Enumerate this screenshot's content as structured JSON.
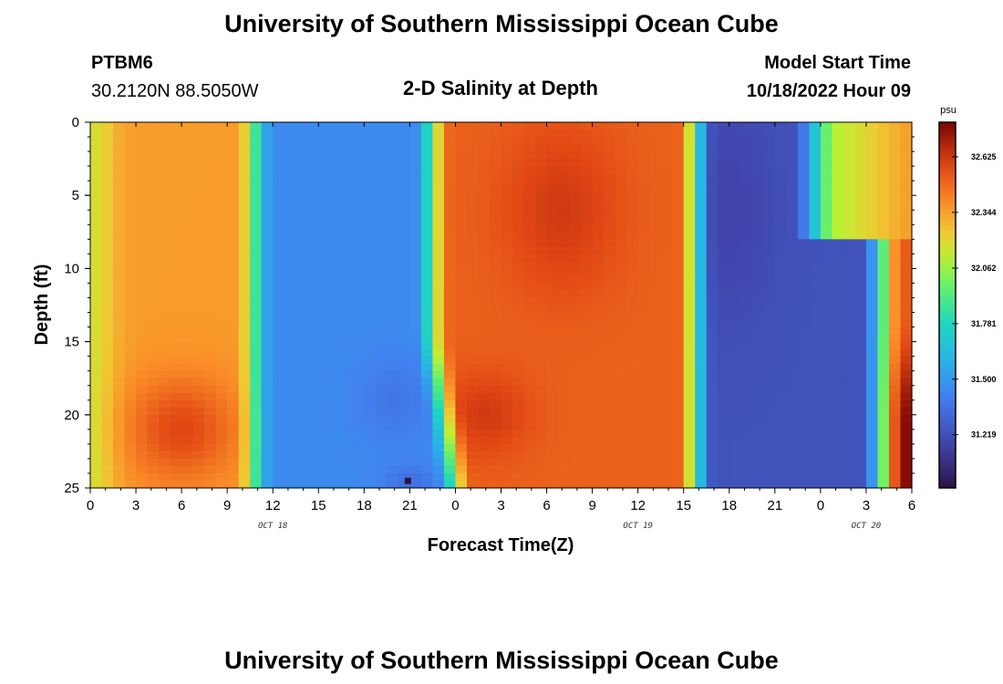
{
  "header": {
    "title": "University of Southern Mississippi Ocean Cube",
    "station": "PTBM6",
    "coords": "30.2120N  88.5050W",
    "plot_title": "2-D Salinity at Depth",
    "model_label": "Model Start Time",
    "model_time": "10/18/2022 Hour 09"
  },
  "footer_title": "University of Southern Mississippi Ocean Cube",
  "colors": {
    "min": "#2a1444",
    "max": "#7a0403"
  },
  "chart_data": {
    "type": "heatmap",
    "xlabel": "Forecast Time(Z)",
    "ylabel": "Depth (ft)",
    "x_unit": "forecast hours from Oct 18 00Z",
    "x_range": [
      0,
      54
    ],
    "x_ticks": [
      0,
      3,
      6,
      9,
      12,
      15,
      18,
      21,
      24,
      27,
      30,
      33,
      36,
      39,
      42,
      45,
      48,
      51,
      54
    ],
    "x_tick_labels": [
      "0",
      "3",
      "6",
      "9",
      "12",
      "15",
      "18",
      "21",
      "0",
      "3",
      "6",
      "9",
      "12",
      "15",
      "18",
      "21",
      "0",
      "3",
      "6"
    ],
    "date_labels": [
      {
        "label": "OCT 18",
        "hour": 12
      },
      {
        "label": "OCT 19",
        "hour": 36
      },
      {
        "label": "OCT 20",
        "hour": 51
      }
    ],
    "y_range": [
      0,
      25
    ],
    "y_ticks": [
      0,
      5,
      10,
      15,
      20,
      25
    ],
    "colorbar": {
      "unit": "psu",
      "min": 30.95,
      "max": 32.8,
      "ticks": [
        32.625,
        32.344,
        32.062,
        31.781,
        31.5,
        31.219
      ]
    },
    "approx_salinity_psu": {
      "note": "values read off the colormap at approximate (hour, depth ft) locations",
      "samples": [
        {
          "hour": 6,
          "depth": 5,
          "value": 32.45
        },
        {
          "hour": 6,
          "depth": 21,
          "value": 32.68
        },
        {
          "hour": 15,
          "depth": 10,
          "value": 31.45
        },
        {
          "hour": 21,
          "depth": 24.5,
          "value": 30.98
        },
        {
          "hour": 30,
          "depth": 5,
          "value": 32.55
        },
        {
          "hour": 42,
          "depth": 5,
          "value": 31.15
        },
        {
          "hour": 49,
          "depth": 4,
          "value": 32.1
        },
        {
          "hour": 54,
          "depth": 20,
          "value": 32.78
        }
      ]
    }
  }
}
